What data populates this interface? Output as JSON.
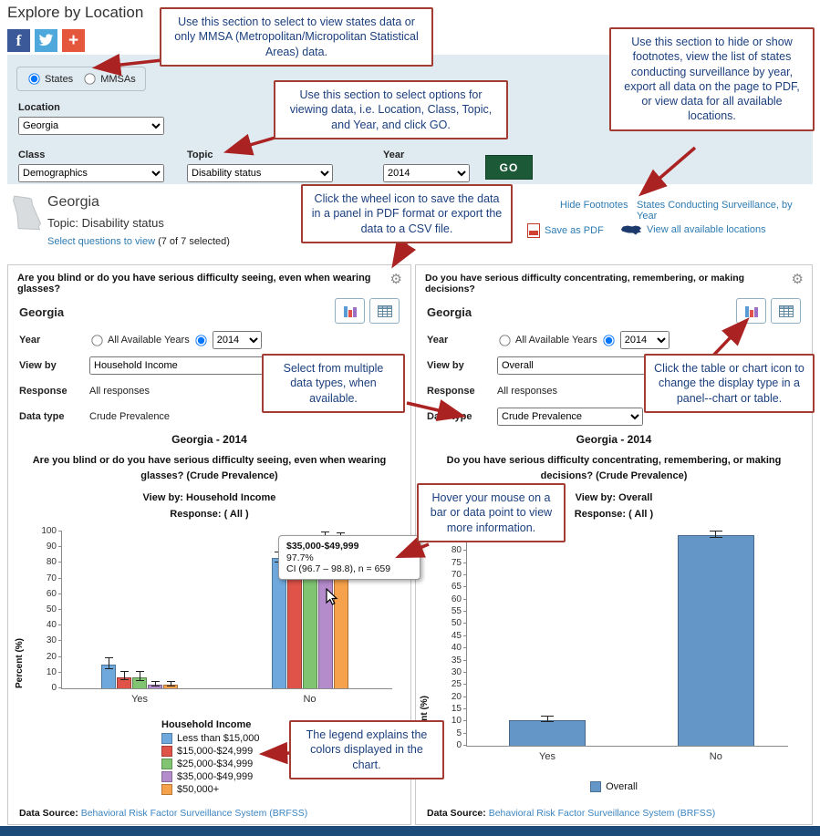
{
  "page": {
    "title": "Explore by Location"
  },
  "social": {
    "facebook_glyph": "f",
    "share_glyph": "+"
  },
  "dataset_toggle": {
    "states": "States",
    "mmsas": "MMSAs",
    "states_selected": true,
    "mmsas_selected": false
  },
  "filters": {
    "location_label": "Location",
    "location_value": "Georgia",
    "class_label": "Class",
    "class_value": "Demographics",
    "topic_label": "Topic",
    "topic_value": "Disability status",
    "year_label": "Year",
    "year_value": "2014",
    "go_label": "GO"
  },
  "location_header": {
    "name": "Georgia",
    "topic_line": "Topic: Disability status",
    "select_questions_link": "Select questions to view",
    "select_questions_count": " (7 of 7 selected)",
    "hide_footnotes": "Hide Footnotes",
    "surveillance_link": "States Conducting Surveillance, by Year",
    "save_pdf": "Save as PDF",
    "view_all_locations": "View all available locations"
  },
  "callouts": {
    "c1": "Use this section to select to view states data or only MMSA (Metropolitan/Micropolitan Statistical Areas) data.",
    "c2": "Use this section to select options for viewing data, i.e. Location, Class, Topic, and Year, and click GO.",
    "c3": "Use this section to hide or show footnotes, view the list of states conducting surveillance by year, export all data on the page to PDF, or view data for all available locations.",
    "c4": "Click the wheel icon to save the data in a panel in PDF format or export the data to a CSV file.",
    "c5": "Select from multiple data types, when available.",
    "c6": "Click the table or chart icon to change the display type in a panel--chart or table.",
    "c7": "Hover your mouse on a bar or data point to view more information.",
    "c8": "The legend explains the colors displayed in the chart."
  },
  "panels": [
    {
      "question": "Are you blind or do you have serious difficulty seeing, even when wearing glasses?",
      "location": "Georgia",
      "year_label": "Year",
      "all_years_label": "All Available Years",
      "all_years_selected": false,
      "year_selected": true,
      "year_value": "2014",
      "view_by_label": "View by",
      "view_by_value": "Household Income",
      "response_label": "Response",
      "response_value": "All responses",
      "data_type_label": "Data type",
      "data_type_value": "Crude Prevalence",
      "data_source_label": "Data Source:",
      "data_source_link": "Behavioral Risk Factor Surveillance System (BRFSS)"
    },
    {
      "question": "Do you have serious difficulty concentrating, remembering, or making decisions?",
      "location": "Georgia",
      "year_label": "Year",
      "all_years_label": "All Available Years",
      "all_years_selected": false,
      "year_selected": true,
      "year_value": "2014",
      "view_by_label": "View by",
      "view_by_value": "Overall",
      "response_label": "Response",
      "response_value": "All responses",
      "data_type_label": "Data type",
      "data_type_value": "Crude Prevalence",
      "data_source_label": "Data Source:",
      "data_source_link": "Behavioral Risk Factor Surveillance System (BRFSS)"
    }
  ],
  "tooltip": {
    "title": "$35,000-$49,999",
    "value": "97.7%",
    "detail": "CI (96.7 – 98.8), n = 659"
  },
  "chart_data": [
    {
      "type": "bar",
      "title": "Georgia - 2014",
      "subtitle": "Are you blind or do you have serious difficulty seeing, even when wearing glasses? (Crude Prevalence)",
      "view_by_line": "View by: Household Income",
      "response_line": "Response: ( All )",
      "ylabel": "Percent (%)",
      "ylim": [
        0,
        100
      ],
      "ytick_step": 10,
      "grid": false,
      "legend_position": "bottom",
      "legend_title": "Household Income",
      "categories": [
        "Yes",
        "No"
      ],
      "series": [
        {
          "name": "Less than $15,000",
          "color": "#6fa8dc",
          "values": [
            15.2,
            83.2
          ],
          "ci": [
            [
              12.2,
              18.7
            ],
            [
              80.0,
              86.1
            ]
          ]
        },
        {
          "name": "$15,000-$24,999",
          "color": "#df5349",
          "values": [
            7.1,
            92.9
          ],
          "ci": [
            [
              5.0,
              9.9
            ],
            [
              90.1,
              95.0
            ]
          ]
        },
        {
          "name": "$25,000-$34,999",
          "color": "#80c472",
          "values": [
            6.9,
            93.1
          ],
          "ci": [
            [
              4.8,
              9.8
            ],
            [
              90.2,
              95.2
            ]
          ]
        },
        {
          "name": "$35,000-$49,999",
          "color": "#b48ccc",
          "values": [
            2.3,
            97.7
          ],
          "ci": [
            [
              1.2,
              3.3
            ],
            [
              96.7,
              98.8
            ]
          ]
        },
        {
          "name": "$50,000+",
          "color": "#f6a14b",
          "values": [
            2.4,
            97.2
          ],
          "ci": [
            [
              1.4,
              3.4
            ],
            [
              96.3,
              98.1
            ]
          ]
        }
      ]
    },
    {
      "type": "bar",
      "title": "Georgia - 2014",
      "subtitle": "Do you have serious difficulty concentrating, remembering, or making decisions? (Crude Prevalence)",
      "view_by_line": "View by: Overall",
      "response_line": "Response: ( All )",
      "ylabel": "Percent (%)",
      "ylim": [
        0,
        88
      ],
      "ytick_step": 5,
      "grid": false,
      "legend_position": "bottom",
      "legend_title": null,
      "categories": [
        "Yes",
        "No"
      ],
      "series": [
        {
          "name": "Overall",
          "color": "#6596c8",
          "values": [
            10.6,
            86.4
          ],
          "ci": [
            [
              9.6,
              11.6
            ],
            [
              85.3,
              87.5
            ]
          ]
        }
      ]
    }
  ]
}
